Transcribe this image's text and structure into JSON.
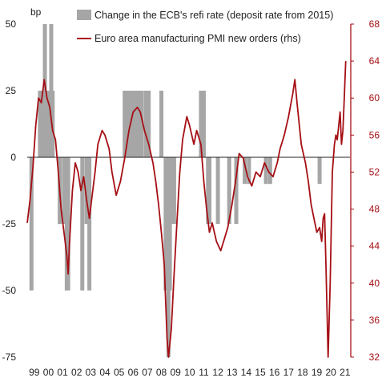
{
  "chart_data": {
    "type": "bar+line",
    "left_axis": {
      "label": "bp",
      "range": [
        -75,
        50
      ],
      "ticks": [
        50,
        25,
        0,
        -25,
        -50,
        -75
      ],
      "tick_labels": [
        "50",
        "25",
        "0",
        "-25",
        "-50",
        "-75"
      ]
    },
    "right_axis": {
      "range": [
        32,
        68
      ],
      "ticks": [
        68,
        64,
        60,
        56,
        52,
        48,
        44,
        40,
        36,
        32
      ],
      "tick_labels": [
        "68",
        "64",
        "60",
        "56",
        "52",
        "48",
        "44",
        "40",
        "36",
        "32"
      ],
      "color": "#a50f15"
    },
    "x_axis": {
      "range": [
        1999.0,
        2021.85
      ],
      "tick_labels": [
        "99",
        "00",
        "01",
        "02",
        "03",
        "04",
        "05",
        "06",
        "07",
        "08",
        "09",
        "10",
        "11",
        "12",
        "13",
        "14",
        "15",
        "16",
        "17",
        "18",
        "19",
        "20",
        "21"
      ]
    },
    "legend": {
      "position": "top",
      "items": [
        {
          "label": "Change in the ECB's refi rate (deposit rate from 2015)",
          "type": "bar",
          "color": "#a6a6a6"
        },
        {
          "label": "Euro area manufacturing PMI new orders (rhs)",
          "type": "line",
          "color": "#a50f15"
        }
      ]
    },
    "bars": {
      "name": "Change in the ECB's refi rate (deposit rate from 2015)",
      "color": "#a6a6a6",
      "points": [
        [
          1999.0,
          0
        ],
        [
          1999.3,
          -50
        ],
        [
          1999.8,
          0
        ],
        [
          1999.9,
          25
        ],
        [
          2000.1,
          25
        ],
        [
          2000.25,
          50
        ],
        [
          2000.4,
          25
        ],
        [
          2000.5,
          25
        ],
        [
          2000.7,
          50
        ],
        [
          2000.8,
          25
        ],
        [
          2001.0,
          0
        ],
        [
          2001.3,
          -25
        ],
        [
          2001.6,
          -25
        ],
        [
          2001.7,
          -25
        ],
        [
          2001.8,
          -50
        ],
        [
          2001.9,
          -50
        ],
        [
          2002.9,
          -50
        ],
        [
          2003.2,
          -25
        ],
        [
          2003.4,
          -50
        ],
        [
          2005.9,
          25
        ],
        [
          2006.1,
          25
        ],
        [
          2006.3,
          25
        ],
        [
          2006.5,
          25
        ],
        [
          2006.6,
          25
        ],
        [
          2006.7,
          25
        ],
        [
          2006.9,
          25
        ],
        [
          2007.1,
          25
        ],
        [
          2007.4,
          25
        ],
        [
          2007.6,
          25
        ],
        [
          2008.5,
          25
        ],
        [
          2008.8,
          -50
        ],
        [
          2008.9,
          -50
        ],
        [
          2009.0,
          -75
        ],
        [
          2009.1,
          -50
        ],
        [
          2009.3,
          -25
        ],
        [
          2009.4,
          -25
        ],
        [
          2011.3,
          25
        ],
        [
          2011.5,
          25
        ],
        [
          2011.8,
          -25
        ],
        [
          2011.9,
          -25
        ],
        [
          2012.5,
          -25
        ],
        [
          2013.3,
          -25
        ],
        [
          2013.8,
          -25
        ],
        [
          2014.4,
          -10
        ],
        [
          2014.7,
          -10
        ],
        [
          2015.9,
          -10
        ],
        [
          2016.2,
          -10
        ],
        [
          2019.7,
          -10
        ]
      ]
    },
    "series": [
      {
        "name": "Euro area manufacturing PMI new orders (rhs)",
        "color": "#a50f15",
        "axis": "right",
        "points": [
          [
            1999.0,
            46.5
          ],
          [
            1999.2,
            49.0
          ],
          [
            1999.4,
            52.5
          ],
          [
            1999.6,
            57.0
          ],
          [
            1999.8,
            60.0
          ],
          [
            2000.0,
            59.5
          ],
          [
            2000.2,
            62.0
          ],
          [
            2000.4,
            60.0
          ],
          [
            2000.6,
            59.0
          ],
          [
            2000.8,
            56.5
          ],
          [
            2001.0,
            55.5
          ],
          [
            2001.2,
            52.0
          ],
          [
            2001.4,
            48.0
          ],
          [
            2001.6,
            45.5
          ],
          [
            2001.8,
            43.0
          ],
          [
            2001.9,
            41.0
          ],
          [
            2002.0,
            44.5
          ],
          [
            2002.2,
            50.0
          ],
          [
            2002.4,
            53.0
          ],
          [
            2002.6,
            52.0
          ],
          [
            2002.8,
            50.0
          ],
          [
            2003.0,
            51.5
          ],
          [
            2003.2,
            49.0
          ],
          [
            2003.4,
            47.0
          ],
          [
            2003.6,
            49.5
          ],
          [
            2003.8,
            52.0
          ],
          [
            2004.0,
            55.0
          ],
          [
            2004.3,
            56.5
          ],
          [
            2004.5,
            56.0
          ],
          [
            2004.8,
            54.5
          ],
          [
            2005.0,
            52.0
          ],
          [
            2005.3,
            49.5
          ],
          [
            2005.6,
            51.0
          ],
          [
            2005.9,
            53.5
          ],
          [
            2006.2,
            56.5
          ],
          [
            2006.5,
            58.5
          ],
          [
            2006.8,
            59.0
          ],
          [
            2007.0,
            58.5
          ],
          [
            2007.3,
            56.5
          ],
          [
            2007.6,
            55.0
          ],
          [
            2007.9,
            53.0
          ],
          [
            2008.1,
            51.0
          ],
          [
            2008.3,
            48.5
          ],
          [
            2008.5,
            45.5
          ],
          [
            2008.7,
            42.0
          ],
          [
            2008.9,
            34.0
          ],
          [
            2009.0,
            32.0
          ],
          [
            2009.2,
            35.0
          ],
          [
            2009.4,
            41.0
          ],
          [
            2009.6,
            46.5
          ],
          [
            2009.8,
            52.0
          ],
          [
            2010.0,
            55.5
          ],
          [
            2010.3,
            58.0
          ],
          [
            2010.5,
            57.0
          ],
          [
            2010.8,
            55.0
          ],
          [
            2011.0,
            56.5
          ],
          [
            2011.3,
            55.0
          ],
          [
            2011.5,
            51.0
          ],
          [
            2011.7,
            48.0
          ],
          [
            2011.9,
            45.5
          ],
          [
            2012.1,
            46.5
          ],
          [
            2012.4,
            44.5
          ],
          [
            2012.7,
            43.5
          ],
          [
            2012.9,
            44.5
          ],
          [
            2013.2,
            46.0
          ],
          [
            2013.5,
            48.5
          ],
          [
            2013.8,
            51.5
          ],
          [
            2014.0,
            54.0
          ],
          [
            2014.3,
            53.5
          ],
          [
            2014.6,
            51.5
          ],
          [
            2014.9,
            50.5
          ],
          [
            2015.2,
            52.0
          ],
          [
            2015.5,
            51.5
          ],
          [
            2015.8,
            53.0
          ],
          [
            2016.1,
            52.0
          ],
          [
            2016.4,
            51.5
          ],
          [
            2016.7,
            53.0
          ],
          [
            2016.9,
            54.5
          ],
          [
            2017.2,
            56.0
          ],
          [
            2017.5,
            58.0
          ],
          [
            2017.8,
            60.5
          ],
          [
            2017.95,
            62.0
          ],
          [
            2018.1,
            59.5
          ],
          [
            2018.4,
            55.0
          ],
          [
            2018.7,
            53.0
          ],
          [
            2018.9,
            51.0
          ],
          [
            2019.1,
            48.5
          ],
          [
            2019.3,
            47.0
          ],
          [
            2019.5,
            45.5
          ],
          [
            2019.7,
            46.0
          ],
          [
            2019.85,
            44.5
          ],
          [
            2019.95,
            47.0
          ],
          [
            2020.05,
            47.5
          ],
          [
            2020.15,
            42.0
          ],
          [
            2020.3,
            32.0
          ],
          [
            2020.45,
            40.0
          ],
          [
            2020.6,
            52.0
          ],
          [
            2020.75,
            55.0
          ],
          [
            2020.85,
            56.0
          ],
          [
            2020.95,
            55.5
          ],
          [
            2021.05,
            57.0
          ],
          [
            2021.15,
            58.5
          ],
          [
            2021.25,
            55.0
          ],
          [
            2021.35,
            56.5
          ],
          [
            2021.45,
            60.0
          ],
          [
            2021.55,
            64.0
          ]
        ]
      }
    ]
  }
}
